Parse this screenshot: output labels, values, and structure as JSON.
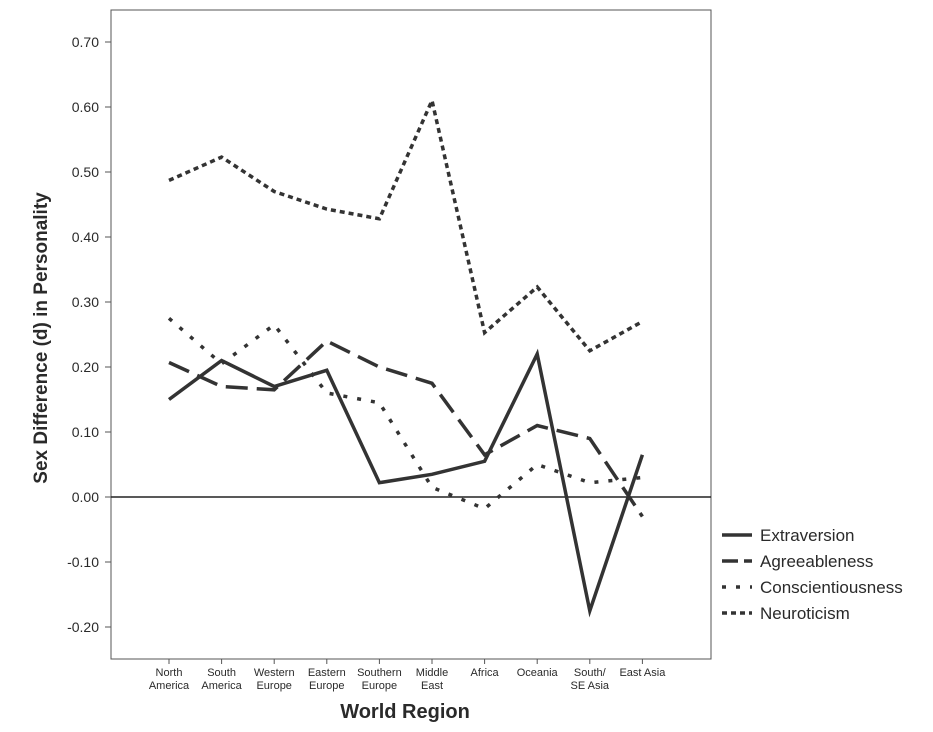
{
  "chart_data": {
    "type": "line",
    "xlabel": "World Region",
    "ylabel": "Sex Difference (d) in Personality",
    "ylim": [
      -0.25,
      0.75
    ],
    "yticks": [
      "0.70",
      "0.60",
      "0.50",
      "0.40",
      "0.30",
      "0.20",
      "0.10",
      "0.00",
      "-0.10",
      "-0.20"
    ],
    "categories": [
      [
        "North",
        "America"
      ],
      [
        "South",
        "America"
      ],
      [
        "Western",
        "Europe"
      ],
      [
        "Eastern",
        "Europe"
      ],
      [
        "Southern",
        "Europe"
      ],
      [
        "Middle",
        "East"
      ],
      [
        "Africa"
      ],
      [
        "Oceania"
      ],
      [
        "South/",
        "SE Asia"
      ],
      [
        "East Asia"
      ]
    ],
    "zero_line": true,
    "grid": false,
    "legend": "right",
    "series": [
      {
        "name": "Extraversion",
        "style": "solid",
        "color": "#333333",
        "values": [
          0.15,
          0.21,
          0.17,
          0.195,
          0.022,
          0.035,
          0.055,
          0.22,
          -0.175,
          0.065
        ]
      },
      {
        "name": "Agreeableness",
        "style": "dashed",
        "color": "#333333",
        "values": [
          0.207,
          0.17,
          0.165,
          0.24,
          0.2,
          0.175,
          0.065,
          0.11,
          0.09,
          -0.03
        ]
      },
      {
        "name": "Conscientiousness",
        "style": "dotted",
        "color": "#333333",
        "values": [
          0.275,
          0.205,
          0.265,
          0.16,
          0.145,
          0.015,
          -0.018,
          0.05,
          0.022,
          0.03
        ]
      },
      {
        "name": "Neuroticism",
        "style": "dense",
        "color": "#333333",
        "values": [
          0.487,
          0.523,
          0.47,
          0.443,
          0.428,
          0.61,
          0.253,
          0.323,
          0.225,
          0.27
        ]
      }
    ]
  }
}
